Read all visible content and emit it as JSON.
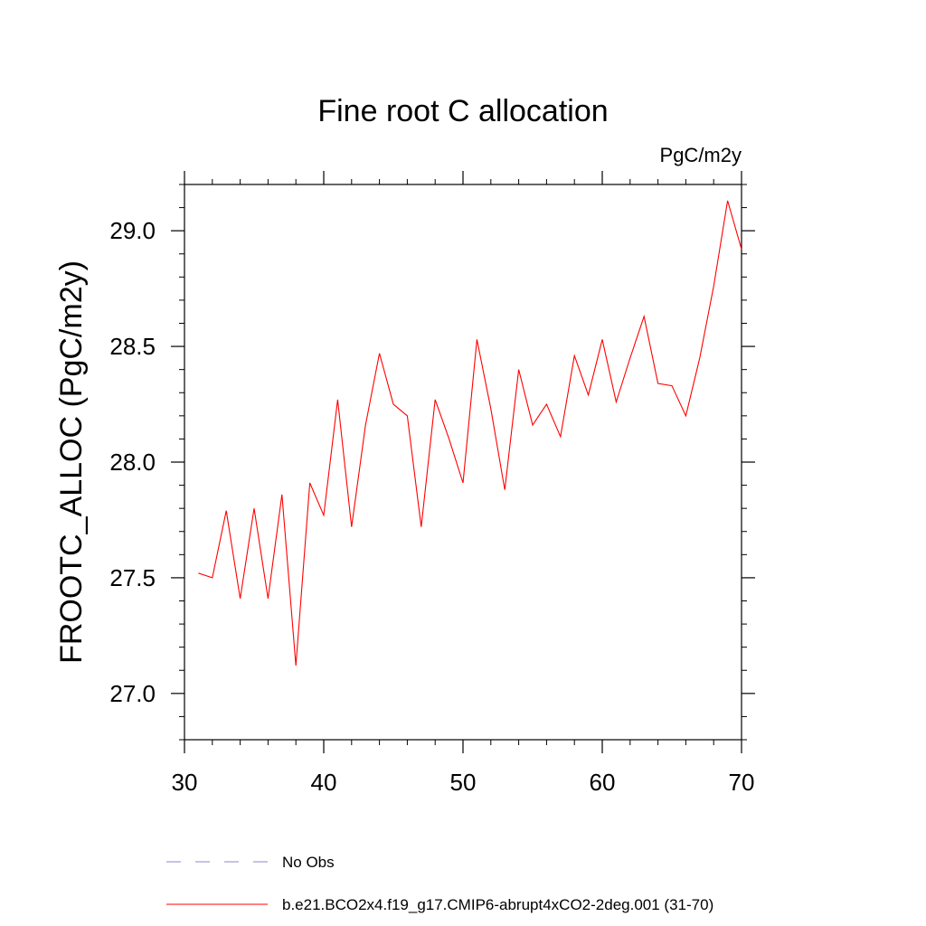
{
  "chart_data": {
    "type": "line",
    "title": "Fine root C allocation",
    "units_label": "PgC/m2y",
    "xlabel": "",
    "ylabel": "FROOTC_ALLOC  (PgC/m2y)",
    "xlim": [
      30,
      70
    ],
    "ylim": [
      26.8,
      29.2
    ],
    "x_ticks": [
      30,
      40,
      50,
      60,
      70
    ],
    "x_tick_labels": [
      "30",
      "40",
      "50",
      "60",
      "70"
    ],
    "y_ticks": [
      27.0,
      27.5,
      28.0,
      28.5,
      29.0
    ],
    "y_tick_labels": [
      "27.0",
      "27.5",
      "28.0",
      "28.5",
      "29.0"
    ],
    "grid": false,
    "series": [
      {
        "name": "b.e21.BCO2x4.f19_g17.CMIP6-abrupt4xCO2-2deg.001 (31-70)",
        "color": "#ff0000",
        "dash": "solid",
        "x": [
          31,
          32,
          33,
          34,
          35,
          36,
          37,
          38,
          39,
          40,
          41,
          42,
          43,
          44,
          45,
          46,
          47,
          48,
          49,
          50,
          51,
          52,
          53,
          54,
          55,
          56,
          57,
          58,
          59,
          60,
          61,
          62,
          63,
          64,
          65,
          66,
          67,
          68,
          69,
          70
        ],
        "y": [
          27.52,
          27.5,
          27.79,
          27.41,
          27.8,
          27.41,
          27.86,
          27.12,
          27.91,
          27.77,
          28.27,
          27.72,
          28.16,
          28.47,
          28.25,
          28.2,
          27.72,
          28.27,
          28.1,
          27.91,
          28.53,
          28.23,
          27.88,
          28.4,
          28.16,
          28.25,
          28.11,
          28.46,
          28.29,
          28.53,
          28.26,
          28.45,
          28.63,
          28.34,
          28.33,
          28.2,
          28.45,
          28.76,
          29.13,
          28.92
        ]
      }
    ],
    "legend": [
      {
        "label": "No Obs",
        "color": "#8888cc",
        "dash": "dashed"
      },
      {
        "label": "b.e21.BCO2x4.f19_g17.CMIP6-abrupt4xCO2-2deg.001 (31-70)",
        "color": "#ff0000",
        "dash": "solid"
      }
    ]
  }
}
